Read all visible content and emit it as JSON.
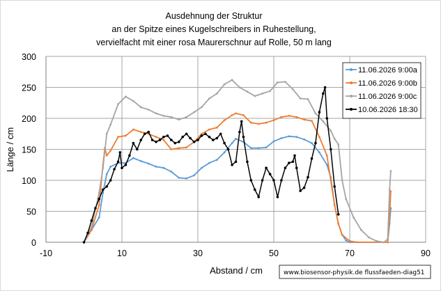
{
  "chart_data": {
    "type": "line",
    "title_lines": [
      "Ausdehnung der Struktur",
      "an der Spitze eines Kugelschreibers in Ruhestellung,",
      "vervielfacht mit einer rosa Maurerschnur auf Rolle, 50 m lang"
    ],
    "xlabel": "Abstand / cm",
    "ylabel": "Länge / cm",
    "xlim": [
      -10,
      90
    ],
    "ylim": [
      0,
      300
    ],
    "xticks": [
      -10,
      10,
      30,
      50,
      70,
      90
    ],
    "yticks": [
      0,
      50,
      100,
      150,
      200,
      250,
      300
    ],
    "grid": true,
    "legend_position": "top-right",
    "source_note": "www.biosensor-physik.de  flussfaeden-diag51",
    "series": [
      {
        "name": "11.06.2026 9:00a",
        "color": "#5b9bd5",
        "points": [
          [
            0,
            0
          ],
          [
            2,
            20
          ],
          [
            4,
            40
          ],
          [
            5,
            80
          ],
          [
            6,
            110
          ],
          [
            7,
            122
          ],
          [
            9,
            128
          ],
          [
            11,
            128
          ],
          [
            13,
            136
          ],
          [
            15,
            131
          ],
          [
            17,
            127
          ],
          [
            19,
            122
          ],
          [
            21,
            120
          ],
          [
            23,
            114
          ],
          [
            25,
            104
          ],
          [
            27,
            103
          ],
          [
            29,
            108
          ],
          [
            31,
            120
          ],
          [
            33,
            128
          ],
          [
            35,
            133
          ],
          [
            37,
            145
          ],
          [
            39,
            160
          ],
          [
            40,
            167
          ],
          [
            42,
            162
          ],
          [
            44,
            152
          ],
          [
            46,
            152
          ],
          [
            48,
            153
          ],
          [
            50,
            163
          ],
          [
            52,
            168
          ],
          [
            54,
            171
          ],
          [
            56,
            170
          ],
          [
            58,
            166
          ],
          [
            60,
            160
          ],
          [
            62,
            145
          ],
          [
            64,
            125
          ],
          [
            65,
            105
          ],
          [
            66,
            60
          ],
          [
            67,
            30
          ],
          [
            68,
            12
          ],
          [
            69,
            3
          ],
          [
            70,
            0
          ],
          [
            80,
            0
          ],
          [
            80.5,
            30
          ],
          [
            80.8,
            55
          ]
        ]
      },
      {
        "name": "11.06.2026 9:00b",
        "color": "#ed7d31",
        "points": [
          [
            0,
            0
          ],
          [
            2,
            20
          ],
          [
            4,
            60
          ],
          [
            5,
            125
          ],
          [
            5.5,
            152
          ],
          [
            6,
            140
          ],
          [
            7,
            148
          ],
          [
            9,
            170
          ],
          [
            11,
            172
          ],
          [
            13,
            182
          ],
          [
            15,
            178
          ],
          [
            17,
            175
          ],
          [
            19,
            170
          ],
          [
            21,
            165
          ],
          [
            23,
            150
          ],
          [
            25,
            152
          ],
          [
            27,
            153
          ],
          [
            29,
            162
          ],
          [
            31,
            175
          ],
          [
            33,
            182
          ],
          [
            35,
            185
          ],
          [
            37,
            197
          ],
          [
            39,
            205
          ],
          [
            40,
            208
          ],
          [
            42,
            205
          ],
          [
            44,
            193
          ],
          [
            46,
            191
          ],
          [
            48,
            193
          ],
          [
            50,
            197
          ],
          [
            52,
            202
          ],
          [
            54,
            204
          ],
          [
            56,
            202
          ],
          [
            58,
            198
          ],
          [
            60,
            196
          ],
          [
            62,
            170
          ],
          [
            64,
            140
          ],
          [
            65,
            100
          ],
          [
            66,
            60
          ],
          [
            67,
            30
          ],
          [
            68,
            12
          ],
          [
            70,
            2
          ],
          [
            72,
            0
          ],
          [
            80,
            0
          ],
          [
            80.5,
            40
          ],
          [
            80.8,
            82
          ]
        ]
      },
      {
        "name": "11.06.2026 9:00c",
        "color": "#a5a5a5",
        "points": [
          [
            0,
            0
          ],
          [
            2,
            25
          ],
          [
            4,
            80
          ],
          [
            5,
            120
          ],
          [
            6,
            175
          ],
          [
            7,
            190
          ],
          [
            9,
            223
          ],
          [
            11,
            235
          ],
          [
            13,
            228
          ],
          [
            15,
            218
          ],
          [
            17,
            214
          ],
          [
            19,
            208
          ],
          [
            21,
            204
          ],
          [
            23,
            202
          ],
          [
            25,
            198
          ],
          [
            27,
            202
          ],
          [
            29,
            210
          ],
          [
            31,
            218
          ],
          [
            33,
            232
          ],
          [
            35,
            240
          ],
          [
            37,
            255
          ],
          [
            39,
            262
          ],
          [
            41,
            250
          ],
          [
            43,
            243
          ],
          [
            45,
            236
          ],
          [
            47,
            240
          ],
          [
            49,
            244
          ],
          [
            51,
            258
          ],
          [
            53,
            259
          ],
          [
            55,
            247
          ],
          [
            57,
            232
          ],
          [
            59,
            231
          ],
          [
            61,
            208
          ],
          [
            63,
            195
          ],
          [
            65,
            180
          ],
          [
            66,
            167
          ],
          [
            67,
            158
          ],
          [
            68,
            100
          ],
          [
            69,
            70
          ],
          [
            71,
            40
          ],
          [
            73,
            20
          ],
          [
            75,
            8
          ],
          [
            77,
            2
          ],
          [
            79,
            0
          ],
          [
            80,
            5
          ],
          [
            80.5,
            85
          ],
          [
            80.8,
            115
          ]
        ]
      },
      {
        "name": "10.06.2026 18:30",
        "color": "#000000",
        "points": [
          [
            0,
            0
          ],
          [
            1,
            15
          ],
          [
            2,
            35
          ],
          [
            3,
            55
          ],
          [
            4,
            70
          ],
          [
            5,
            85
          ],
          [
            6,
            90
          ],
          [
            7,
            100
          ],
          [
            8,
            118
          ],
          [
            9,
            130
          ],
          [
            9.5,
            145
          ],
          [
            10,
            120
          ],
          [
            11,
            125
          ],
          [
            12,
            140
          ],
          [
            13,
            160
          ],
          [
            14,
            150
          ],
          [
            15,
            165
          ],
          [
            16,
            175
          ],
          [
            17,
            178
          ],
          [
            18,
            165
          ],
          [
            19,
            162
          ],
          [
            20,
            165
          ],
          [
            21,
            170
          ],
          [
            22,
            172
          ],
          [
            23,
            165
          ],
          [
            24,
            160
          ],
          [
            25,
            162
          ],
          [
            26,
            170
          ],
          [
            27,
            175
          ],
          [
            28,
            168
          ],
          [
            29,
            162
          ],
          [
            30,
            165
          ],
          [
            31,
            172
          ],
          [
            32,
            175
          ],
          [
            33,
            170
          ],
          [
            34,
            165
          ],
          [
            35,
            168
          ],
          [
            36,
            175
          ],
          [
            37,
            160
          ],
          [
            38,
            150
          ],
          [
            39,
            125
          ],
          [
            40,
            130
          ],
          [
            41,
            178
          ],
          [
            41.5,
            195
          ],
          [
            42,
            170
          ],
          [
            43,
            130
          ],
          [
            44,
            100
          ],
          [
            45,
            85
          ],
          [
            46,
            73
          ],
          [
            47,
            100
          ],
          [
            48,
            120
          ],
          [
            49,
            110
          ],
          [
            50,
            100
          ],
          [
            51,
            73
          ],
          [
            52,
            100
          ],
          [
            53,
            120
          ],
          [
            54,
            128
          ],
          [
            55,
            130
          ],
          [
            55.5,
            140
          ],
          [
            56,
            120
          ],
          [
            57,
            83
          ],
          [
            58,
            88
          ],
          [
            59,
            105
          ],
          [
            60,
            135
          ],
          [
            61,
            160
          ],
          [
            62,
            210
          ],
          [
            63,
            240
          ],
          [
            63.5,
            250
          ],
          [
            64,
            200
          ],
          [
            65,
            150
          ],
          [
            66,
            90
          ],
          [
            67,
            45
          ]
        ]
      }
    ]
  }
}
